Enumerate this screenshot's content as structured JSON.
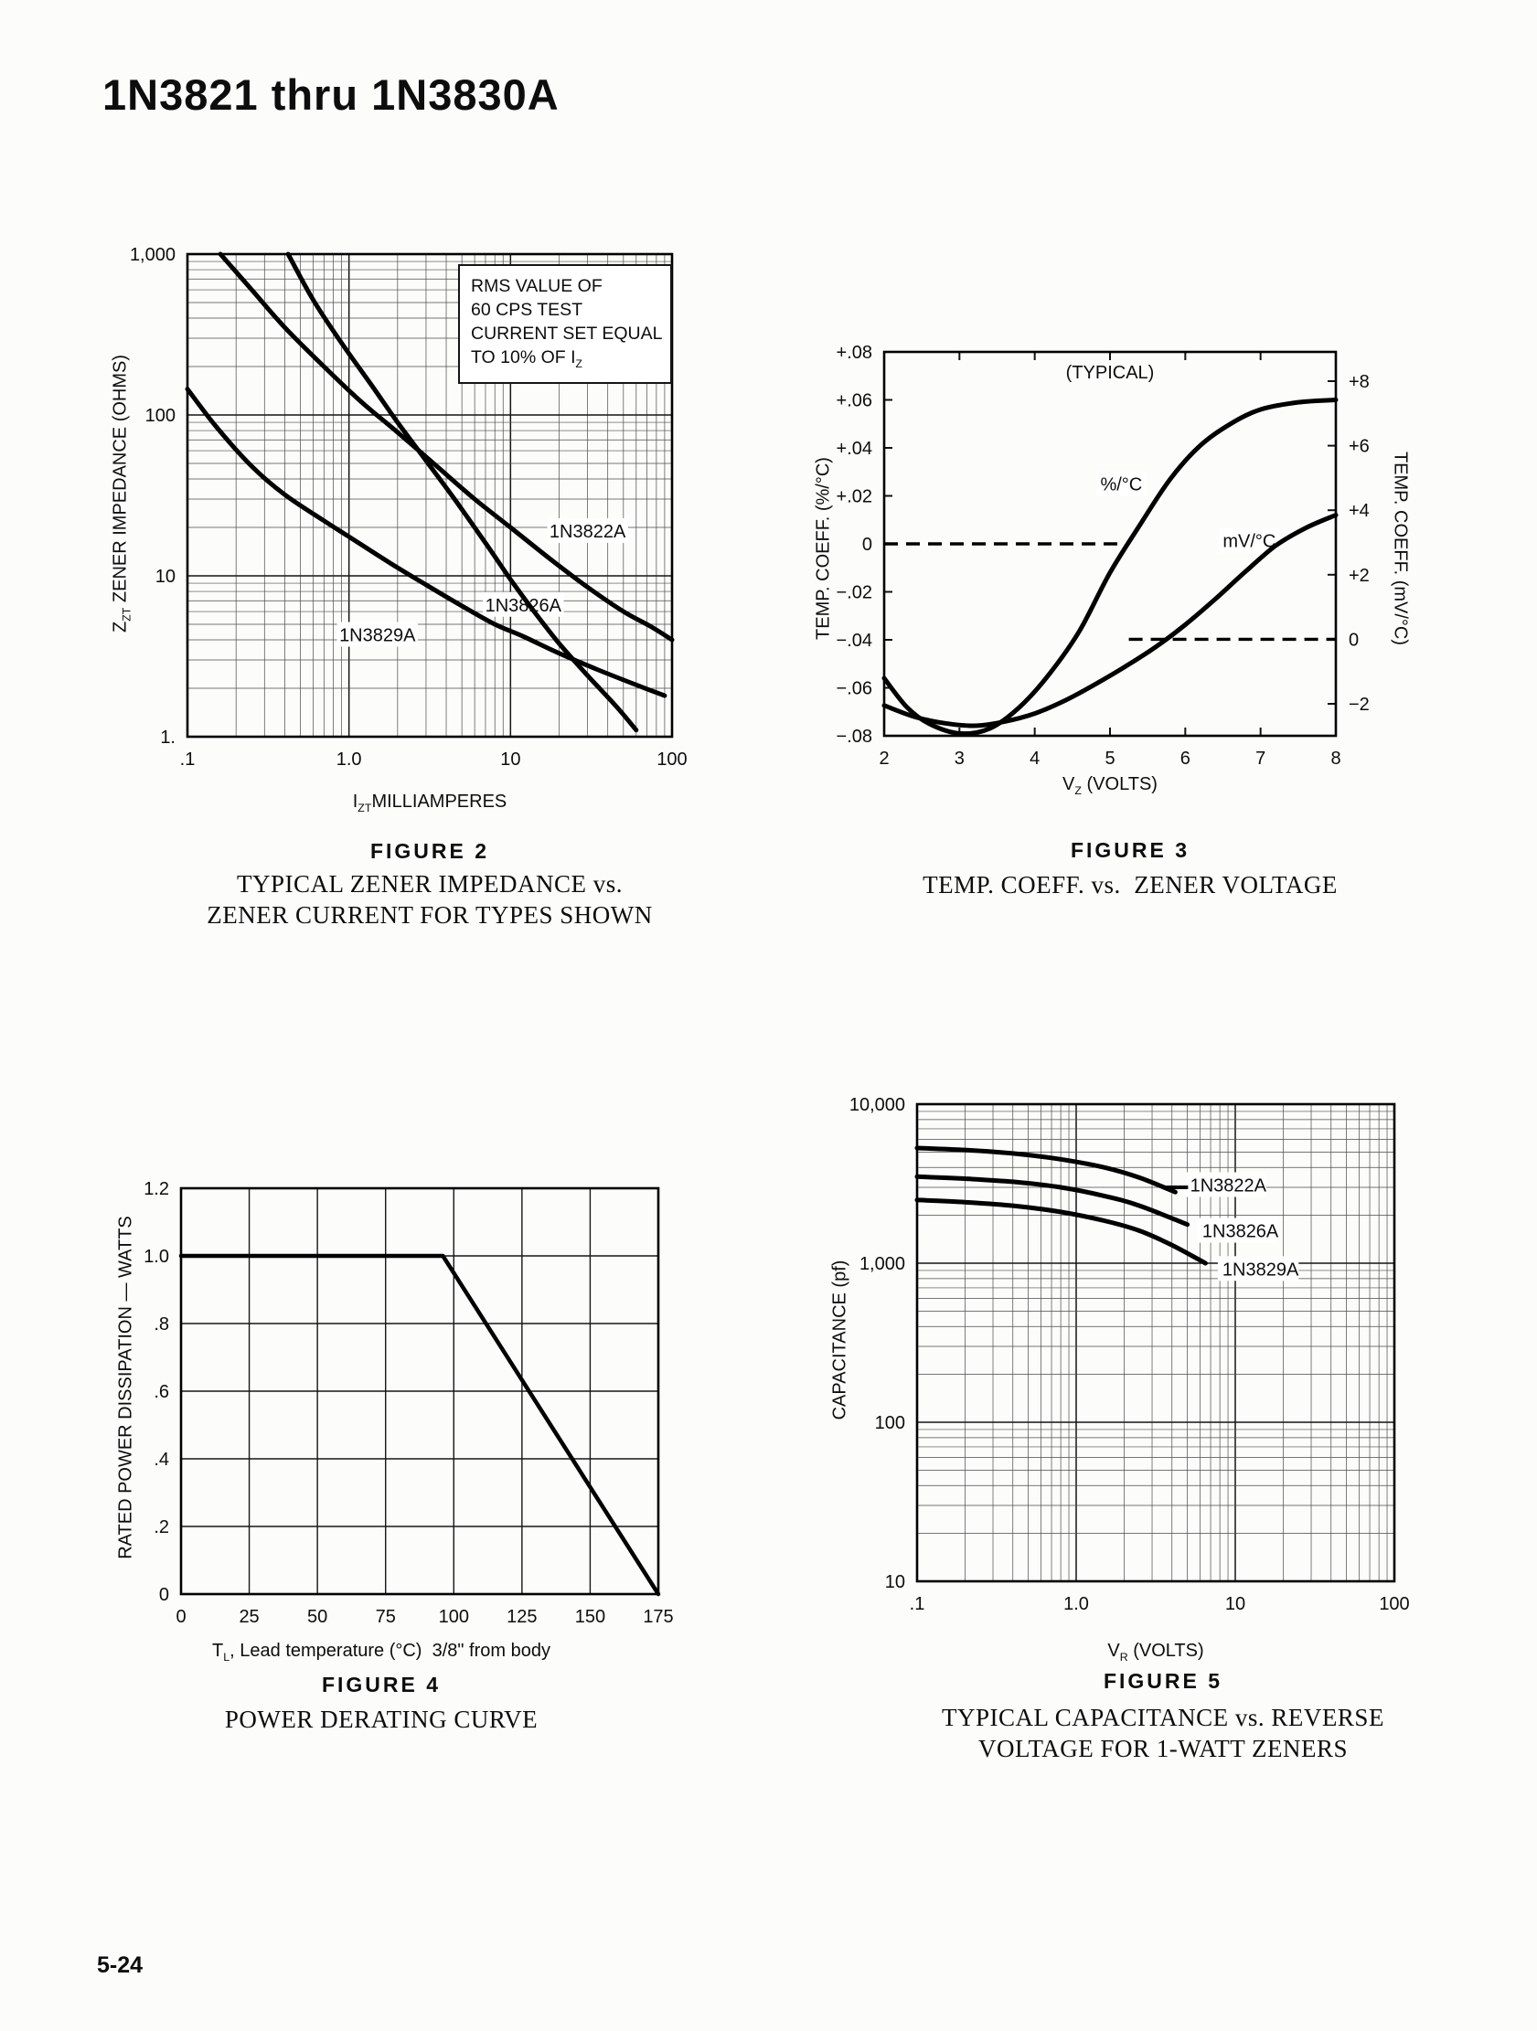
{
  "page": {
    "title": "1N3821 thru 1N3830A",
    "footer": "5-24"
  },
  "figures": {
    "f2": {
      "caption": "FIGURE 2",
      "sub1": "TYPICAL ZENER IMPEDANCE vs.",
      "sub2": "ZENER CURRENT FOR TYPES SHOWN",
      "y_main": "Z",
      "y_sub": "ZT",
      "y_rest": " ZENER IMPEDANCE (OHMS)",
      "x_main": "I",
      "x_sub": "ZT",
      "x_rest": "MILLIAMPERES",
      "note4_pre": "TO 10% OF I",
      "note4_sub": "Z"
    },
    "f3": {
      "caption": "FIGURE 3",
      "sub1": "TEMP. COEFF. vs.  ZENER VOLTAGE",
      "yl": "TEMP. COEFF. (%/°C)",
      "yr": "TEMP. COEFF. (mV/°C)",
      "x_main": "V",
      "x_sub": "Z",
      "x_rest": " (VOLTS)"
    },
    "f4": {
      "caption": "FIGURE 4",
      "sub1": "POWER DERATING CURVE",
      "y": "RATED POWER DISSIPATION — WATTS",
      "x_main": "T",
      "x_sub": "L",
      "x_rest": ", Lead temperature (°C)  3/8\" from body"
    },
    "f5": {
      "caption": "FIGURE 5",
      "sub1": "TYPICAL CAPACITANCE vs. REVERSE",
      "sub2": "VOLTAGE FOR 1-WATT ZENERS",
      "y": "CAPACITANCE (pf)",
      "x_main": "V",
      "x_sub": "R",
      "x_rest": " (VOLTS)"
    }
  },
  "chart_data": [
    {
      "id": "figure-2",
      "type": "line",
      "title": "TYPICAL ZENER IMPEDANCE vs. ZENER CURRENT FOR TYPES SHOWN",
      "xlabel": "IZT MILLIAMPERES",
      "ylabel": "ZZT ZENER IMPEDANCE (OHMS)",
      "grid": "log",
      "x": {
        "scale": "log",
        "min": 0.1,
        "max": 100,
        "ticks": [
          {
            "v": 0.1,
            "t": ".1"
          },
          {
            "v": 1,
            "t": "1.0"
          },
          {
            "v": 10,
            "t": "10"
          },
          {
            "v": 100,
            "t": "100"
          }
        ]
      },
      "y": {
        "scale": "log",
        "min": 1,
        "max": 1000,
        "ticks": [
          {
            "v": 1000,
            "t": "1,000"
          },
          {
            "v": 100,
            "t": "100"
          },
          {
            "v": 10,
            "t": "10"
          },
          {
            "v": 1,
            "t": "1."
          }
        ]
      },
      "series": [
        {
          "name": "1N3822A",
          "anchor": "middle",
          "label_at": [
            30,
            19
          ],
          "points": [
            [
              0.16,
              1000
            ],
            [
              0.25,
              600
            ],
            [
              0.4,
              350
            ],
            [
              0.7,
              200
            ],
            [
              1.2,
              120
            ],
            [
              2,
              78
            ],
            [
              3.5,
              48
            ],
            [
              6,
              30
            ],
            [
              10,
              20
            ],
            [
              18,
              12.5
            ],
            [
              30,
              8.5
            ],
            [
              50,
              6
            ],
            [
              75,
              4.8
            ],
            [
              100,
              4
            ]
          ]
        },
        {
          "name": "1N3826A",
          "anchor": "middle",
          "label_at": [
            12,
            6.6
          ],
          "points": [
            [
              0.42,
              1000
            ],
            [
              0.6,
              520
            ],
            [
              0.9,
              280
            ],
            [
              1.4,
              150
            ],
            [
              2,
              90
            ],
            [
              3,
              52
            ],
            [
              4.5,
              30
            ],
            [
              7,
              16
            ],
            [
              10,
              9.5
            ],
            [
              14,
              6
            ],
            [
              20,
              3.8
            ],
            [
              30,
              2.4
            ],
            [
              45,
              1.55
            ],
            [
              60,
              1.1
            ]
          ]
        },
        {
          "name": "1N3829A",
          "anchor": "middle",
          "label_at": [
            1.5,
            4.3
          ],
          "points": [
            [
              0.1,
              145
            ],
            [
              0.15,
              85
            ],
            [
              0.25,
              48
            ],
            [
              0.4,
              32
            ],
            [
              0.7,
              22
            ],
            [
              1,
              17.5
            ],
            [
              1.8,
              12
            ],
            [
              3,
              8.8
            ],
            [
              5,
              6.5
            ],
            [
              8,
              5
            ],
            [
              12,
              4.2
            ],
            [
              20,
              3.3
            ],
            [
              35,
              2.6
            ],
            [
              60,
              2.1
            ],
            [
              90,
              1.8
            ]
          ]
        }
      ],
      "note": [
        "RMS VALUE OF",
        "60 CPS TEST",
        "CURRENT SET EQUAL",
        "TO 10% OF IZ"
      ]
    },
    {
      "id": "figure-3",
      "type": "line",
      "title": "TEMP. COEFF. vs. ZENER VOLTAGE",
      "xlabel": "VZ (VOLTS)",
      "ylabel_left": "TEMP. COEFF. (%/°C)",
      "ylabel_right": "TEMP. COEFF. (mV/°C)",
      "grid": "ticks",
      "x": {
        "scale": "linear",
        "min": 2,
        "max": 8,
        "ticks": [
          {
            "v": 2,
            "t": "2"
          },
          {
            "v": 3,
            "t": "3"
          },
          {
            "v": 4,
            "t": "4"
          },
          {
            "v": 5,
            "t": "5"
          },
          {
            "v": 6,
            "t": "6"
          },
          {
            "v": 7,
            "t": "7"
          },
          {
            "v": 8,
            "t": "8"
          }
        ]
      },
      "y": {
        "scale": "linear",
        "min": -0.08,
        "max": 0.08,
        "ticks": [
          {
            "v": 0.08,
            "t": "+.08"
          },
          {
            "v": 0.06,
            "t": "+.06"
          },
          {
            "v": 0.04,
            "t": "+.04"
          },
          {
            "v": 0.02,
            "t": "+.02"
          },
          {
            "v": 0,
            "t": "0"
          },
          {
            "v": -0.02,
            "t": "−.02"
          },
          {
            "v": -0.04,
            "t": "−.04"
          },
          {
            "v": -0.06,
            "t": "−.06"
          },
          {
            "v": -0.08,
            "t": "−.08"
          }
        ]
      },
      "y2": {
        "scale": "linear",
        "min": -2,
        "max": 8,
        "inset_top": 32,
        "inset_bottom": 35,
        "ticks": [
          {
            "v": 8,
            "t": "+8"
          },
          {
            "v": 6,
            "t": "+6"
          },
          {
            "v": 4,
            "t": "+4"
          },
          {
            "v": 2,
            "t": "+2"
          },
          {
            "v": 0,
            "t": "0"
          },
          {
            "v": -2,
            "t": "−2"
          }
        ]
      },
      "series": [
        {
          "name": "%/°C",
          "anchor": "middle",
          "label_at": [
            5.15,
            0.025
          ],
          "points": [
            [
              2,
              -0.056
            ],
            [
              2.3,
              -0.068
            ],
            [
              2.6,
              -0.075
            ],
            [
              3,
              -0.079
            ],
            [
              3.4,
              -0.077
            ],
            [
              3.8,
              -0.068
            ],
            [
              4.2,
              -0.054
            ],
            [
              4.6,
              -0.036
            ],
            [
              5,
              -0.012
            ],
            [
              5.4,
              0.008
            ],
            [
              5.8,
              0.027
            ],
            [
              6.2,
              0.041
            ],
            [
              6.6,
              0.05
            ],
            [
              7,
              0.056
            ],
            [
              7.5,
              0.059
            ],
            [
              8,
              0.06
            ]
          ]
        },
        {
          "name": "mV/°C",
          "axis": "y2",
          "anchor": "middle",
          "label_at": [
            6.85,
            3.05
          ],
          "points": [
            [
              2,
              -2.05
            ],
            [
              2.4,
              -2.4
            ],
            [
              2.8,
              -2.6
            ],
            [
              3.2,
              -2.68
            ],
            [
              3.6,
              -2.55
            ],
            [
              4,
              -2.3
            ],
            [
              4.4,
              -1.9
            ],
            [
              4.8,
              -1.4
            ],
            [
              5.2,
              -0.85
            ],
            [
              5.6,
              -0.25
            ],
            [
              6,
              0.45
            ],
            [
              6.4,
              1.25
            ],
            [
              6.8,
              2.1
            ],
            [
              7.2,
              2.9
            ],
            [
              7.6,
              3.45
            ],
            [
              8,
              3.85
            ]
          ]
        }
      ],
      "dashed": [
        {
          "axis": "y",
          "y": 0,
          "x1": 2,
          "x2": 5.15
        },
        {
          "axis": "y2",
          "y": 0,
          "x1": 5.25,
          "x2": 8
        }
      ],
      "annotations": [
        {
          "t": "(TYPICAL)",
          "x": 5.0,
          "y": 0.069,
          "axis": "y"
        }
      ]
    },
    {
      "id": "figure-4",
      "type": "line",
      "title": "POWER DERATING CURVE",
      "xlabel": "TL, Lead temperature (°C) 3/8\" from body",
      "ylabel": "RATED POWER DISSIPATION — WATTS",
      "grid": "linear",
      "smooth": false,
      "lw": 4.5,
      "x": {
        "scale": "linear",
        "min": 0,
        "max": 175,
        "ticks": [
          {
            "v": 0,
            "t": "0"
          },
          {
            "v": 25,
            "t": "25"
          },
          {
            "v": 50,
            "t": "50"
          },
          {
            "v": 75,
            "t": "75"
          },
          {
            "v": 100,
            "t": "100"
          },
          {
            "v": 125,
            "t": "125"
          },
          {
            "v": 150,
            "t": "150"
          },
          {
            "v": 175,
            "t": "175"
          }
        ]
      },
      "y": {
        "scale": "linear",
        "min": 0,
        "max": 1.2,
        "ticks": [
          {
            "v": 1.2,
            "t": "1.2"
          },
          {
            "v": 1,
            "t": "1.0"
          },
          {
            "v": 0.8,
            "t": ".8"
          },
          {
            "v": 0.6,
            "t": ".6"
          },
          {
            "v": 0.4,
            "t": ".4"
          },
          {
            "v": 0.2,
            "t": ".2"
          },
          {
            "v": 0,
            "t": "0"
          }
        ]
      },
      "series": [
        {
          "name": "rated-power",
          "points": [
            [
              0,
              1.0
            ],
            [
              96,
              1.0
            ],
            [
              175,
              0
            ]
          ]
        }
      ]
    },
    {
      "id": "figure-5",
      "type": "line",
      "title": "TYPICAL CAPACITANCE vs. REVERSE VOLTAGE FOR 1-WATT ZENERS",
      "xlabel": "VR (VOLTS)",
      "ylabel": "CAPACITANCE (pf)",
      "grid": "log",
      "x": {
        "scale": "log",
        "min": 0.1,
        "max": 100,
        "ticks": [
          {
            "v": 0.1,
            "t": ".1"
          },
          {
            "v": 1,
            "t": "1.0"
          },
          {
            "v": 10,
            "t": "10"
          },
          {
            "v": 100,
            "t": "100"
          }
        ]
      },
      "y": {
        "scale": "log",
        "min": 10,
        "max": 10000,
        "ticks": [
          {
            "v": 10000,
            "t": "10,000"
          },
          {
            "v": 1000,
            "t": "1,000"
          },
          {
            "v": 100,
            "t": "100"
          },
          {
            "v": 10,
            "t": "10"
          }
        ]
      },
      "series": [
        {
          "name": "1N3822A",
          "anchor": "start",
          "label_at": [
            5.2,
            3100
          ],
          "leader": [
            [
              3.6,
              3000,
              5.05,
              3000
            ]
          ],
          "points": [
            [
              0.1,
              5300
            ],
            [
              0.2,
              5150
            ],
            [
              0.4,
              4900
            ],
            [
              0.8,
              4500
            ],
            [
              1.5,
              4000
            ],
            [
              2.5,
              3450
            ],
            [
              4.2,
              2800
            ]
          ]
        },
        {
          "name": "1N3826A",
          "anchor": "start",
          "label_at": [
            6.2,
            1600
          ],
          "points": [
            [
              0.1,
              3500
            ],
            [
              0.2,
              3400
            ],
            [
              0.4,
              3250
            ],
            [
              0.8,
              3000
            ],
            [
              1.5,
              2650
            ],
            [
              2.5,
              2300
            ],
            [
              5,
              1750
            ]
          ]
        },
        {
          "name": "1N3829A",
          "anchor": "start",
          "label_at": [
            8.3,
            920
          ],
          "points": [
            [
              0.1,
              2500
            ],
            [
              0.2,
              2420
            ],
            [
              0.4,
              2300
            ],
            [
              0.8,
              2100
            ],
            [
              1.5,
              1850
            ],
            [
              2.5,
              1600
            ],
            [
              4,
              1300
            ],
            [
              6.5,
              1000
            ]
          ]
        }
      ]
    }
  ]
}
